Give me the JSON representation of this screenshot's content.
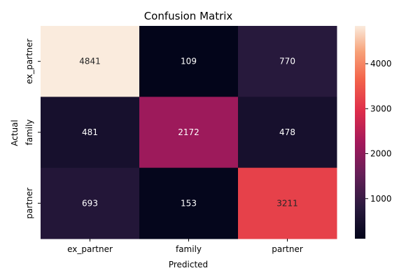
{
  "chart_data": {
    "type": "heatmap",
    "title": "Confusion Matrix",
    "xlabel": "Predicted",
    "ylabel": "Actual",
    "x_categories": [
      "ex_partner",
      "family",
      "partner"
    ],
    "y_categories": [
      "ex_partner",
      "family",
      "partner"
    ],
    "values": [
      [
        4841,
        109,
        770
      ],
      [
        481,
        2172,
        478
      ],
      [
        693,
        153,
        3211
      ]
    ],
    "colorscale": "rocket",
    "colorbar": {
      "min": 109,
      "max": 4841,
      "ticks": [
        1000,
        2000,
        3000,
        4000
      ]
    },
    "grid": false,
    "legend": "colorbar-right"
  }
}
